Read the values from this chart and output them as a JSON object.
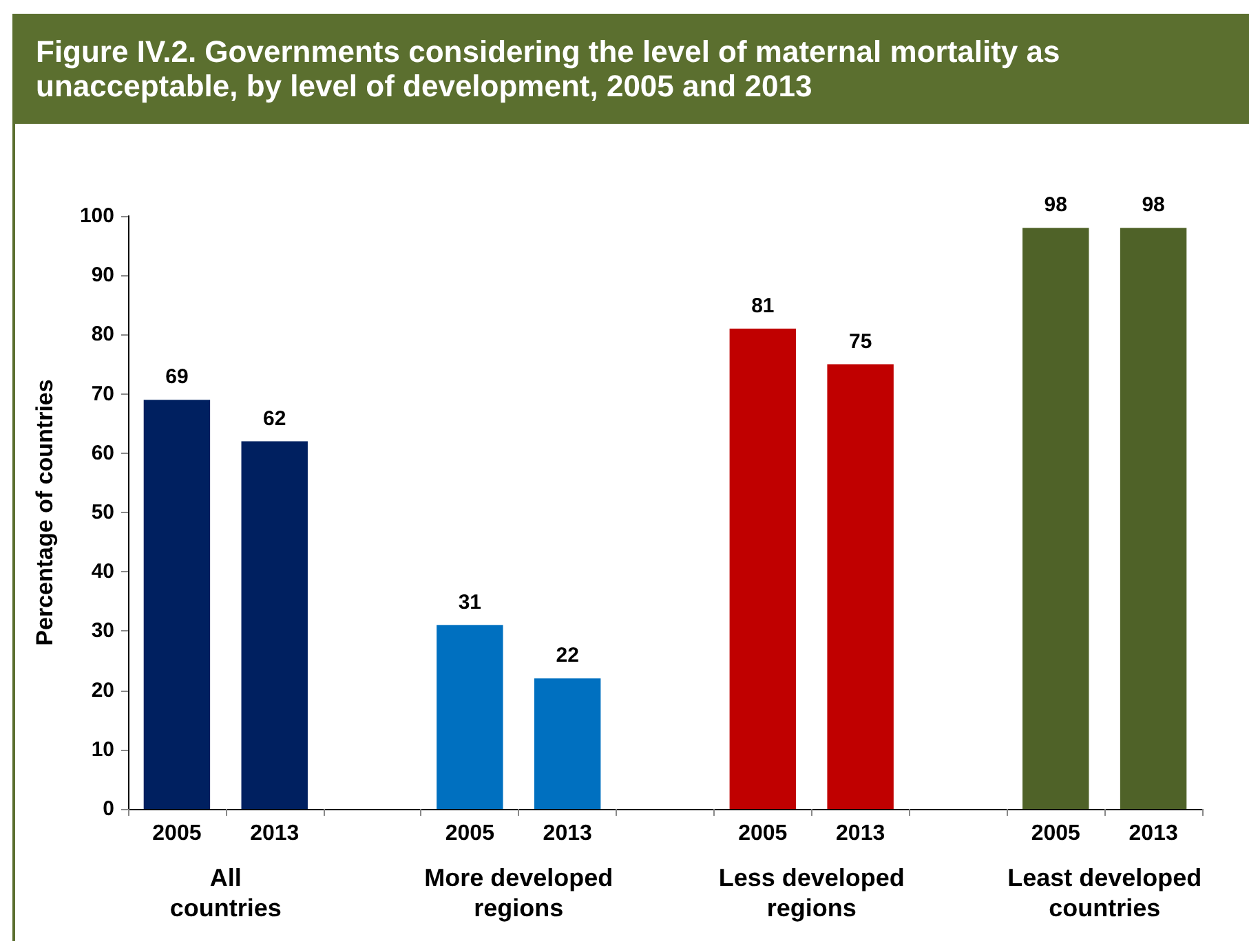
{
  "chart_data": {
    "type": "bar",
    "title": "Figure IV.2. Governments considering the level of maternal mortality as unacceptable, by level of development, 2005 and 2013",
    "ylabel": "Percentage of countries",
    "categories": [
      "All countries",
      "More developed regions",
      "Less developed regions",
      "Least developed countries"
    ],
    "series": [
      {
        "name": "2005",
        "colors": [
          "#002060",
          "#0070c0",
          "#c00000",
          "#4f6228"
        ],
        "values": [
          69,
          31,
          81,
          98
        ]
      },
      {
        "name": "2013",
        "colors": [
          "#002060",
          "#0070c0",
          "#c00000",
          "#4f6228"
        ],
        "values": [
          62,
          22,
          75,
          98
        ]
      }
    ],
    "ylim": [
      0,
      100
    ],
    "yticks": [
      0,
      10,
      20,
      30,
      40,
      50,
      60,
      70,
      80,
      90,
      100
    ],
    "grid": false,
    "data_labels": true
  }
}
